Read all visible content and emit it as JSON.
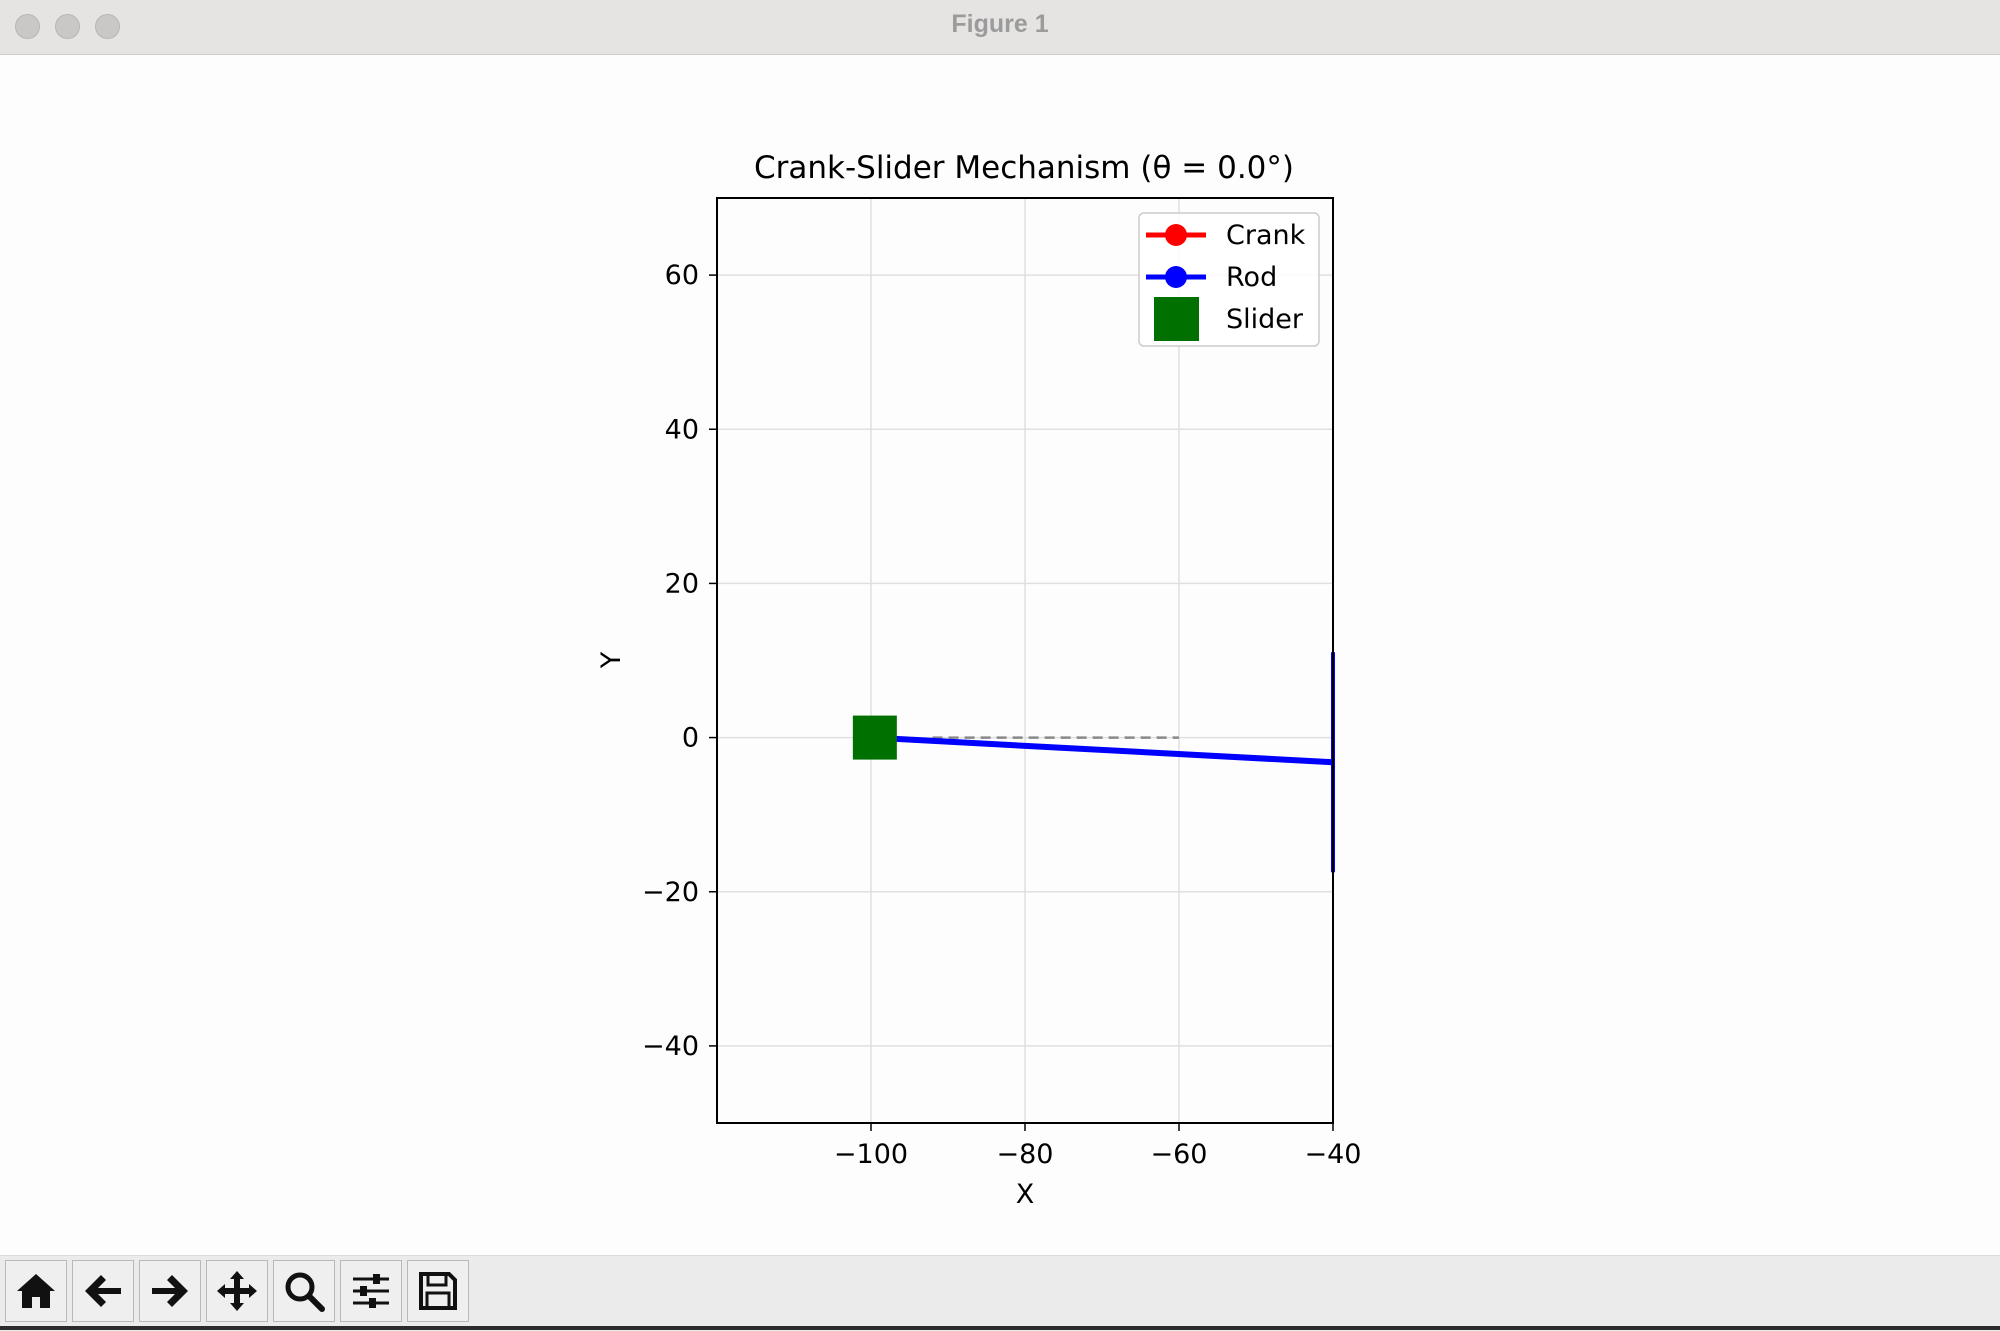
{
  "window": {
    "title": "Figure 1"
  },
  "chart_data": {
    "type": "line",
    "title": "Crank-Slider Mechanism (θ = 0.0°)",
    "xlabel": "X",
    "ylabel": "Y",
    "xlim": [
      -120,
      -40
    ],
    "ylim": [
      -50,
      70
    ],
    "xticks": [
      -100,
      -80,
      -60,
      -40
    ],
    "yticks": [
      -40,
      -20,
      0,
      20,
      40,
      60
    ],
    "xtick_labels": [
      "−100",
      "−80",
      "−60",
      "−40"
    ],
    "ytick_labels": [
      "−40",
      "−20",
      "0",
      "20",
      "40",
      "60"
    ],
    "grid": true,
    "legend_position": "upper-right",
    "series": [
      {
        "name": "Crank",
        "color": "#ff0000",
        "marker": "circle",
        "x": [],
        "y": []
      },
      {
        "name": "Rod",
        "color": "#0000ff",
        "marker": "circle",
        "x": [
          -100,
          -40
        ],
        "y": [
          0,
          -3.2
        ]
      },
      {
        "name": "Slider",
        "color": "#007000",
        "marker": "square",
        "x": [
          -99.5
        ],
        "y": [
          0
        ]
      }
    ],
    "annotations": [
      {
        "type": "dashed-guide",
        "color": "#888888",
        "x": [
          -92,
          -60
        ],
        "y": [
          0,
          0
        ]
      }
    ]
  },
  "toolbar": {
    "buttons": [
      {
        "name": "home-button",
        "icon": "home-icon"
      },
      {
        "name": "back-button",
        "icon": "arrow-left-icon"
      },
      {
        "name": "forward-button",
        "icon": "arrow-right-icon"
      },
      {
        "name": "pan-button",
        "icon": "move-icon"
      },
      {
        "name": "zoom-button",
        "icon": "magnifier-icon"
      },
      {
        "name": "configure-subplots-button",
        "icon": "sliders-icon"
      },
      {
        "name": "save-button",
        "icon": "floppy-disk-icon"
      }
    ]
  }
}
